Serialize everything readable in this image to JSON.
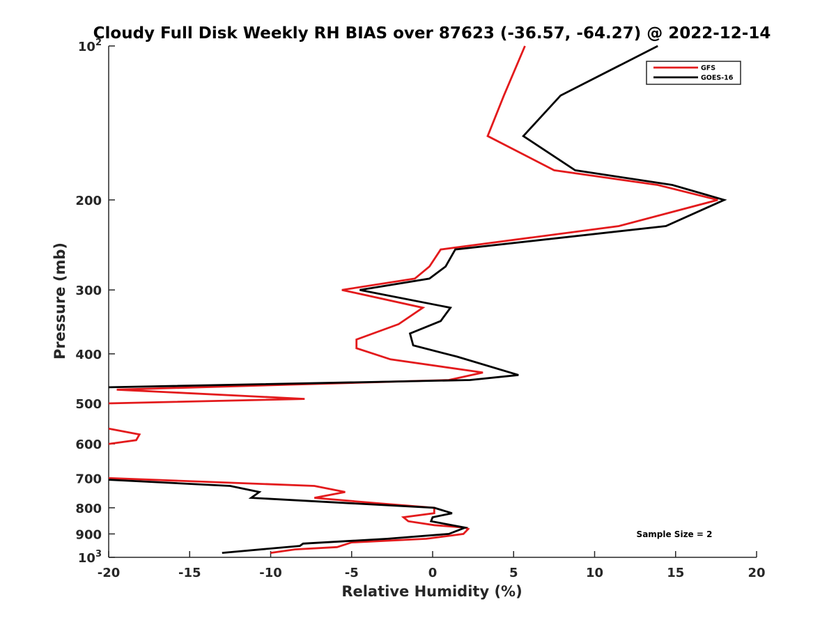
{
  "chart_data": {
    "type": "line",
    "title": "Cloudy Full Disk Weekly RH BIAS over 87623 (-36.57, -64.27) @ 2022-12-14",
    "xlabel": "Relative Humidity (%)",
    "ylabel": "Pressure (mb)",
    "xlim": [
      -20,
      20
    ],
    "ylim": [
      100,
      1000
    ],
    "y_scale": "log",
    "y_reversed": true,
    "grid": false,
    "x_ticks": [
      "-20",
      "-15",
      "-10",
      "-5",
      "0",
      "5",
      "10",
      "15",
      "20"
    ],
    "y_ticks": [
      {
        "base": "10",
        "exp": "2"
      },
      {
        "base": "200",
        "exp": ""
      },
      {
        "base": "300",
        "exp": ""
      },
      {
        "base": "400",
        "exp": ""
      },
      {
        "base": "500",
        "exp": ""
      },
      {
        "base": "600",
        "exp": ""
      },
      {
        "base": "700",
        "exp": ""
      },
      {
        "base": "800",
        "exp": ""
      },
      {
        "base": "900",
        "exp": ""
      },
      {
        "base": "10",
        "exp": "3"
      }
    ],
    "legend_position": "top-right",
    "series": [
      {
        "name": "GFS",
        "color": "#e31a1c",
        "points": [
          [
            5.7,
            100
          ],
          [
            4.4,
            125
          ],
          [
            3.4,
            150
          ],
          [
            7.5,
            175
          ],
          [
            13.9,
            187
          ],
          [
            17.6,
            200
          ],
          [
            11.5,
            225
          ],
          [
            0.5,
            250
          ],
          [
            -0.2,
            270
          ],
          [
            -1.1,
            285
          ],
          [
            -5.6,
            300
          ],
          [
            -0.6,
            325
          ],
          [
            -2.1,
            350
          ],
          [
            -4.7,
            375
          ],
          [
            -4.7,
            390
          ],
          [
            -2.6,
            410
          ],
          [
            3.1,
            435
          ],
          [
            1.0,
            450
          ],
          [
            -19.5,
            470
          ],
          [
            -7.9,
            490
          ],
          [
            -20,
            500
          ],
          [
            null,
            null
          ],
          [
            -20,
            560
          ],
          [
            -18.1,
            575
          ],
          [
            -18.3,
            590
          ],
          [
            -20,
            600
          ],
          [
            null,
            null
          ],
          [
            -20,
            700
          ],
          [
            -7.3,
            725
          ],
          [
            -5.4,
            745
          ],
          [
            -7.3,
            765
          ],
          [
            -3.2,
            785
          ],
          [
            0.1,
            800
          ],
          [
            0.1,
            820
          ],
          [
            -1.8,
            835
          ],
          [
            -1.5,
            850
          ],
          [
            0.1,
            865
          ],
          [
            2.0,
            875
          ],
          [
            2.2,
            880
          ],
          [
            1.9,
            900
          ],
          [
            -0.4,
            920
          ],
          [
            -5.0,
            935
          ],
          [
            -5.9,
            955
          ],
          [
            -8.5,
            965
          ],
          [
            -10.0,
            980
          ]
        ]
      },
      {
        "name": "GOES-16",
        "color": "#000000",
        "points": [
          [
            13.9,
            100
          ],
          [
            7.9,
            125
          ],
          [
            5.6,
            150
          ],
          [
            8.8,
            175
          ],
          [
            14.8,
            187
          ],
          [
            18.0,
            200
          ],
          [
            14.4,
            225
          ],
          [
            1.4,
            250
          ],
          [
            0.8,
            270
          ],
          [
            -0.2,
            285
          ],
          [
            -4.5,
            300
          ],
          [
            1.1,
            325
          ],
          [
            0.5,
            345
          ],
          [
            -1.4,
            365
          ],
          [
            -1.2,
            385
          ],
          [
            1.5,
            405
          ],
          [
            5.3,
            440
          ],
          [
            2.3,
            450
          ],
          [
            -20,
            465
          ],
          [
            null,
            null
          ],
          [
            -20,
            705
          ],
          [
            -12.5,
            725
          ],
          [
            -10.7,
            745
          ],
          [
            -11.2,
            765
          ],
          [
            0.1,
            800
          ],
          [
            1.2,
            820
          ],
          [
            0.0,
            835
          ],
          [
            -0.1,
            850
          ],
          [
            2.0,
            875
          ],
          [
            1.0,
            900
          ],
          [
            -2.8,
            920
          ],
          [
            -8.0,
            940
          ],
          [
            -8.2,
            950
          ],
          [
            -13.0,
            980
          ]
        ]
      }
    ],
    "annotations": [
      {
        "text": "Sample Size = 2"
      }
    ]
  }
}
